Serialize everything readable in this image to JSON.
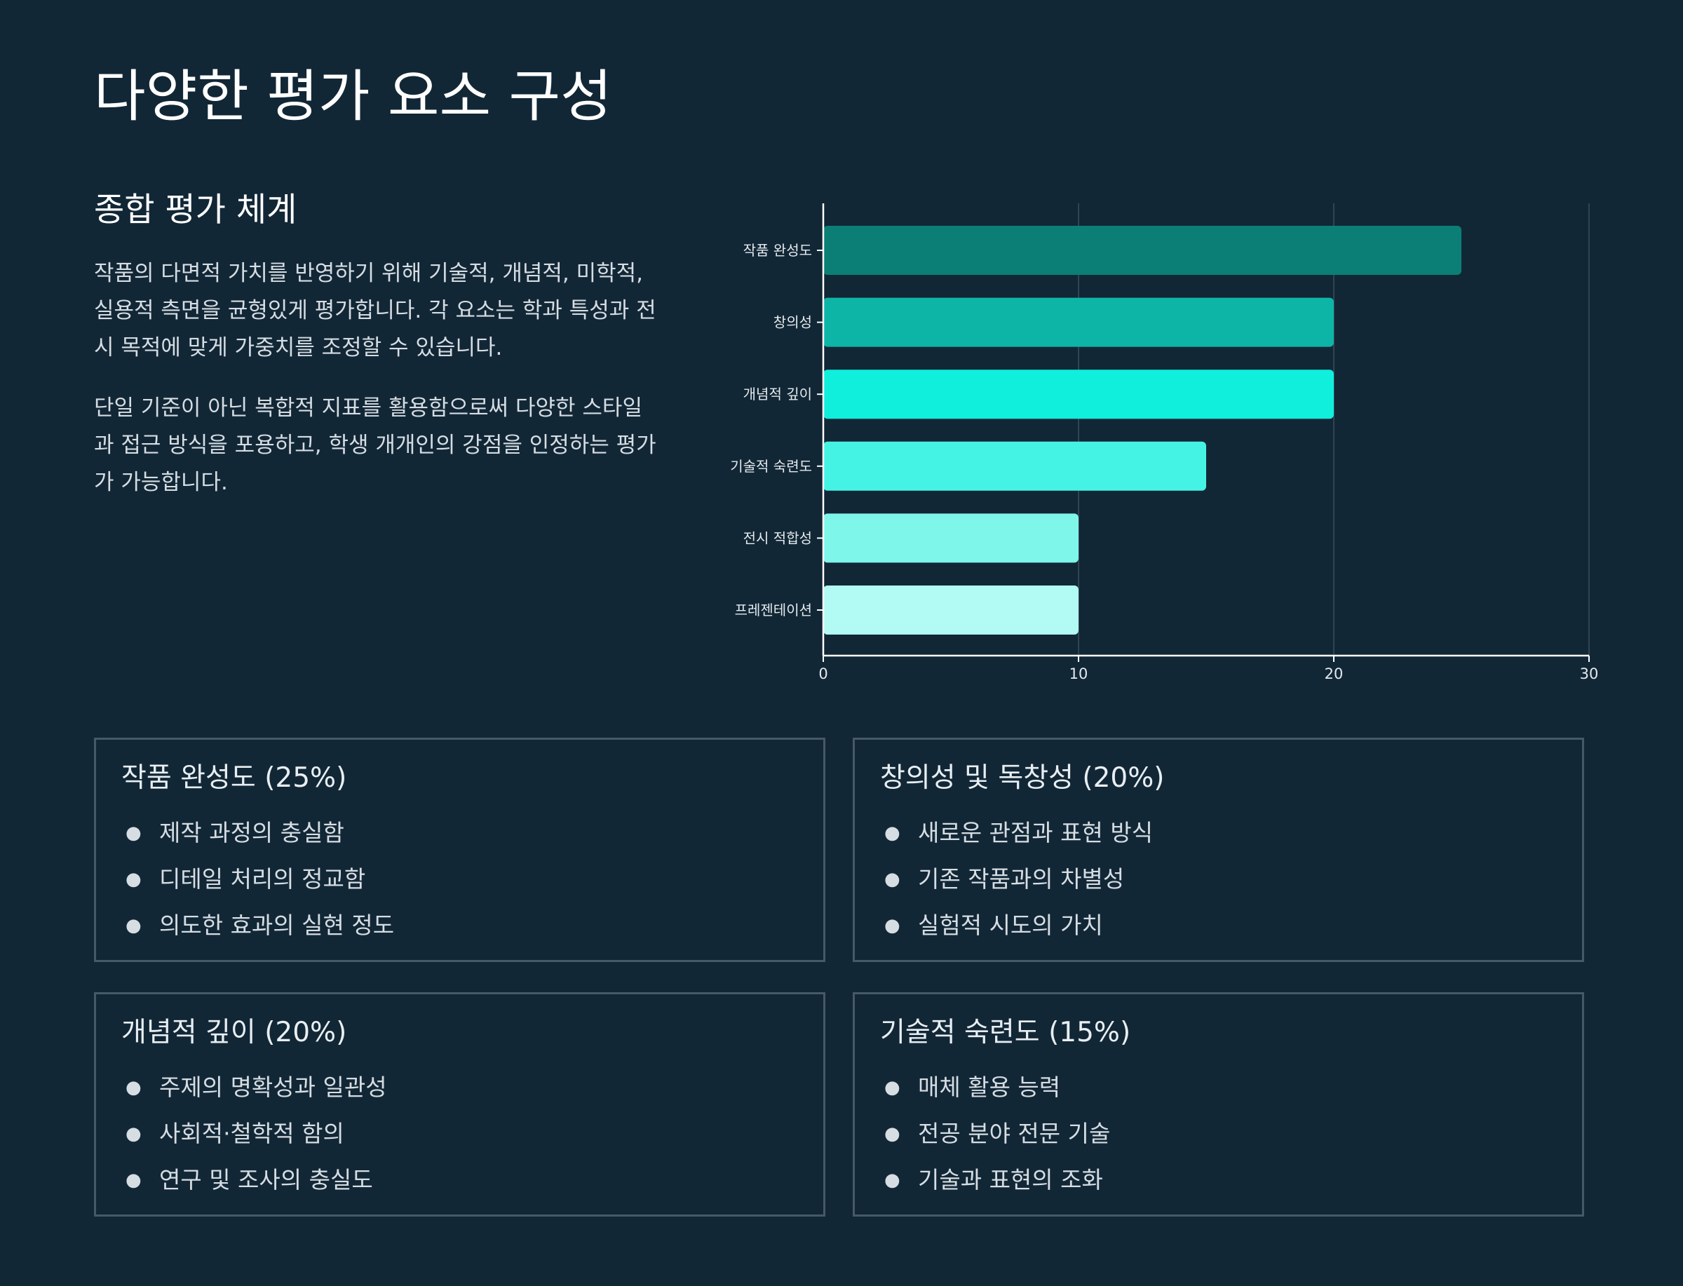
{
  "page": {
    "title": "다양한 평가 요소 구성"
  },
  "intro": {
    "heading": "종합 평가 체계",
    "paragraph_1": "작품의 다면적 가치를 반영하기 위해 기술적, 개념적, 미학적, 실용적 측면을 균형있게 평가합니다. 각 요소는 학과 특성과 전시 목적에 맞게 가중치를 조정할 수 있습니다.",
    "paragraph_2": "단일 기준이 아닌 복합적 지표를 활용함으로써 다양한 스타일과 접근 방식을 포용하고, 학생 개개인의 강점을 인정하는 평가가 가능합니다."
  },
  "chart_data": {
    "type": "bar",
    "orientation": "horizontal",
    "categories": [
      "작품 완성도",
      "창의성",
      "개념적 깊이",
      "기술적 숙련도",
      "전시 적합성",
      "프레젠테이션"
    ],
    "values": [
      25,
      20,
      20,
      15,
      10,
      10
    ],
    "bar_colors": [
      "#0b7f75",
      "#0db5a6",
      "#10eedc",
      "#45f3e4",
      "#7ef6ea",
      "#b2faf4"
    ],
    "xlim": [
      0,
      30
    ],
    "xticks": [
      0,
      10,
      20,
      30
    ],
    "grid": true,
    "title": "",
    "xlabel": "",
    "ylabel": ""
  },
  "cards": [
    {
      "title": "작품 완성도 (25%)",
      "items": [
        "제작 과정의 충실함",
        "디테일 처리의 정교함",
        "의도한 효과의 실현 정도"
      ]
    },
    {
      "title": "창의성 및 독창성 (20%)",
      "items": [
        "새로운 관점과 표현 방식",
        "기존 작품과의 차별성",
        "실험적 시도의 가치"
      ]
    },
    {
      "title": "개념적 깊이 (20%)",
      "items": [
        "주제의 명확성과 일관성",
        "사회적·철학적 함의",
        "연구 및 조사의 충실도"
      ]
    },
    {
      "title": "기술적 숙련도 (15%)",
      "items": [
        "매체 활용 능력",
        "전공 분야 전문 기술",
        "기술과 표현의 조화"
      ]
    }
  ],
  "colors": {
    "background": "#122736",
    "card_border": "#46596a",
    "axis": "#ffffff",
    "grid": "#3b4f5e"
  }
}
